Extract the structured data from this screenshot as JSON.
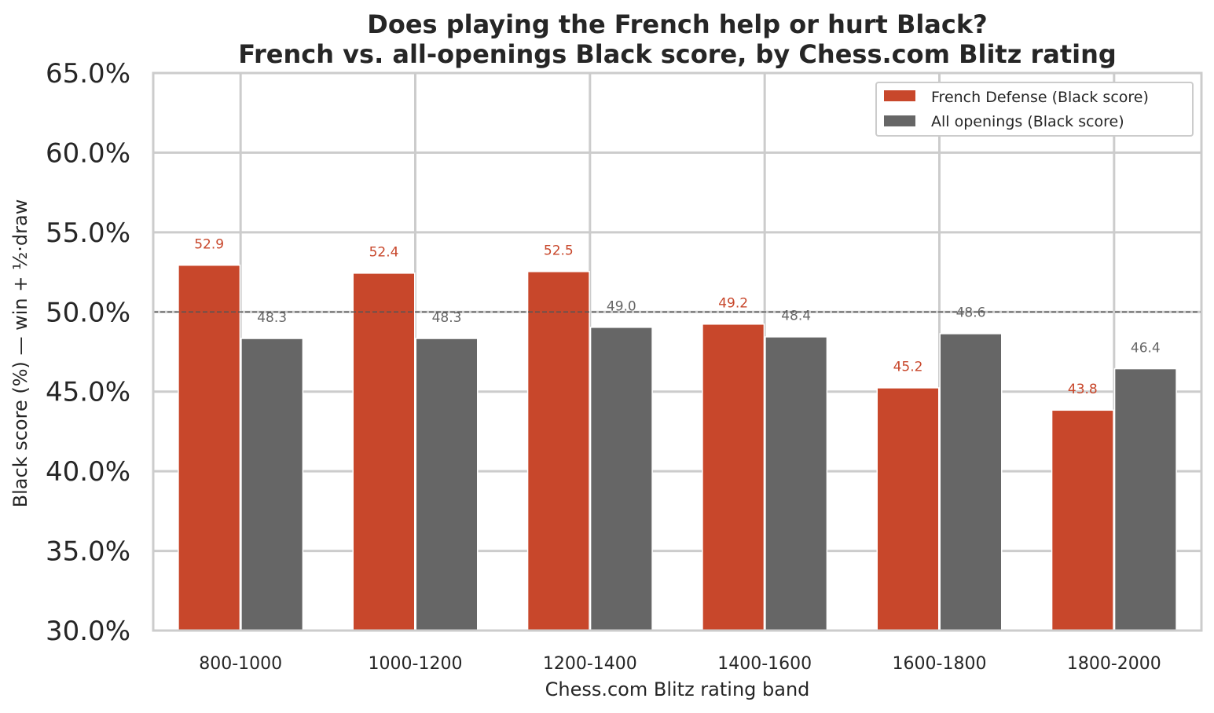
{
  "chart_data": {
    "type": "bar",
    "title": "Does playing the French help or hurt Black?",
    "subtitle": "French vs. all-openings Black score, by Chess.com Blitz rating",
    "xlabel": "Chess.com Blitz rating band",
    "ylabel": "Black score (%)  — win + ½·draw",
    "categories": [
      "800-1000",
      "1000-1200",
      "1200-1400",
      "1400-1600",
      "1600-1800",
      "1800-2000"
    ],
    "series": [
      {
        "name": "French Defense (Black score)",
        "color": "#c8472b",
        "values": [
          52.9,
          52.4,
          52.5,
          49.2,
          45.2,
          43.8
        ],
        "labels": [
          "52.9",
          "52.4",
          "52.5",
          "49.2",
          "45.2",
          "43.8"
        ]
      },
      {
        "name": "All openings (Black score)",
        "color": "#666666",
        "values": [
          48.3,
          48.3,
          49.0,
          48.4,
          48.6,
          46.4
        ],
        "labels": [
          "48.3",
          "48.3",
          "49.0",
          "48.4",
          "48.6",
          "46.4"
        ]
      }
    ],
    "ylim": [
      30,
      65
    ],
    "yticks": [
      30,
      35,
      40,
      45,
      50,
      55,
      60,
      65
    ],
    "ytick_labels": [
      "30.0%",
      "35.0%",
      "40.0%",
      "45.0%",
      "50.0%",
      "55.0%",
      "60.0%",
      "65.0%"
    ],
    "reference_line": 50,
    "grid": true,
    "legend_position": "top-right"
  }
}
